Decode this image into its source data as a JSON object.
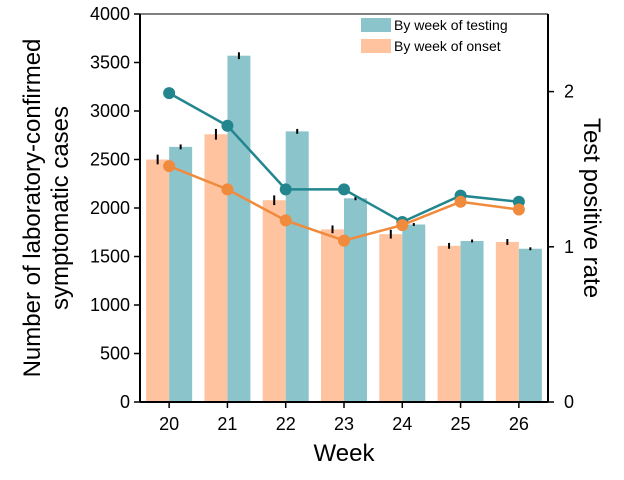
{
  "chart_data": {
    "type": "bar+line",
    "xlabel": "Week",
    "ylabel_left": [
      "Number of laboratory-confirmed",
      "symptomatic cases"
    ],
    "ylabel_right": "Test positive rate",
    "categories": [
      "20",
      "21",
      "22",
      "23",
      "24",
      "25",
      "26"
    ],
    "ylim_left": [
      0,
      4000
    ],
    "yticks_left": [
      0,
      500,
      1000,
      1500,
      2000,
      2500,
      3000,
      3500,
      4000
    ],
    "ylim_right": [
      0,
      2.5
    ],
    "yticks_right": [
      0,
      1,
      2
    ],
    "bar_series": [
      {
        "name": "By week of onset",
        "color": "#ffc49f",
        "values": [
          2500,
          2760,
          2080,
          1780,
          1730,
          1610,
          1650
        ],
        "error": [
          50,
          55,
          50,
          40,
          45,
          30,
          30
        ]
      },
      {
        "name": "By week of testing",
        "color": "#8cc4cc",
        "values": [
          2630,
          3570,
          2790,
          2100,
          1830,
          1660,
          1580
        ],
        "error": [
          25,
          35,
          25,
          20,
          15,
          15,
          15
        ]
      }
    ],
    "line_series": [
      {
        "name": "By week of testing",
        "color": "#23868f",
        "values": [
          1.99,
          1.78,
          1.37,
          1.37,
          1.16,
          1.33,
          1.29
        ]
      },
      {
        "name": "By week of onset",
        "color": "#f08a3c",
        "values": [
          1.52,
          1.37,
          1.17,
          1.04,
          1.14,
          1.29,
          1.24
        ]
      }
    ],
    "legend": [
      {
        "label": "By week of testing",
        "color": "#8cc4cc"
      },
      {
        "label": "By week of onset",
        "color": "#ffc49f"
      }
    ]
  }
}
